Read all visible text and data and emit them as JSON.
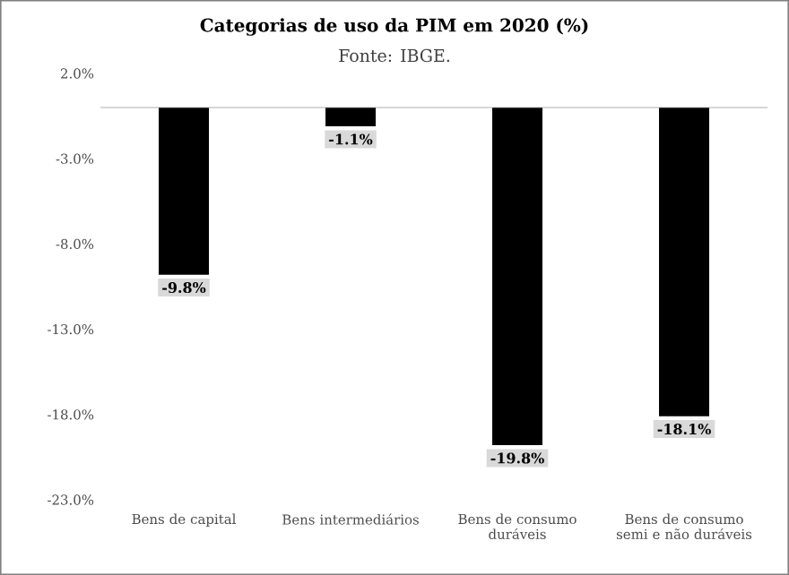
{
  "chart_data": {
    "type": "bar",
    "title": "Categorias de uso da PIM em 2020 (%)",
    "subtitle": "Fonte: IBGE.",
    "categories": [
      "Bens de capital",
      "Bens intermediários",
      "Bens de consumo duráveis",
      "Bens de consumo semi e não duráveis"
    ],
    "values": [
      -9.8,
      -1.1,
      -19.8,
      -18.1
    ],
    "value_labels": [
      "-9.8%",
      "-1.1%",
      "-19.8%",
      "-18.1%"
    ],
    "color": "#000000",
    "ylim": [
      -23,
      2
    ],
    "yticks": [
      {
        "value": 2,
        "label": "2.0%"
      },
      {
        "value": -3,
        "label": "-3.0%"
      },
      {
        "value": -8,
        "label": "-8.0%"
      },
      {
        "value": -13,
        "label": "-13.0%"
      },
      {
        "value": -18,
        "label": "-18.0%"
      },
      {
        "value": -23,
        "label": "-23.0%"
      }
    ],
    "grid": false
  }
}
